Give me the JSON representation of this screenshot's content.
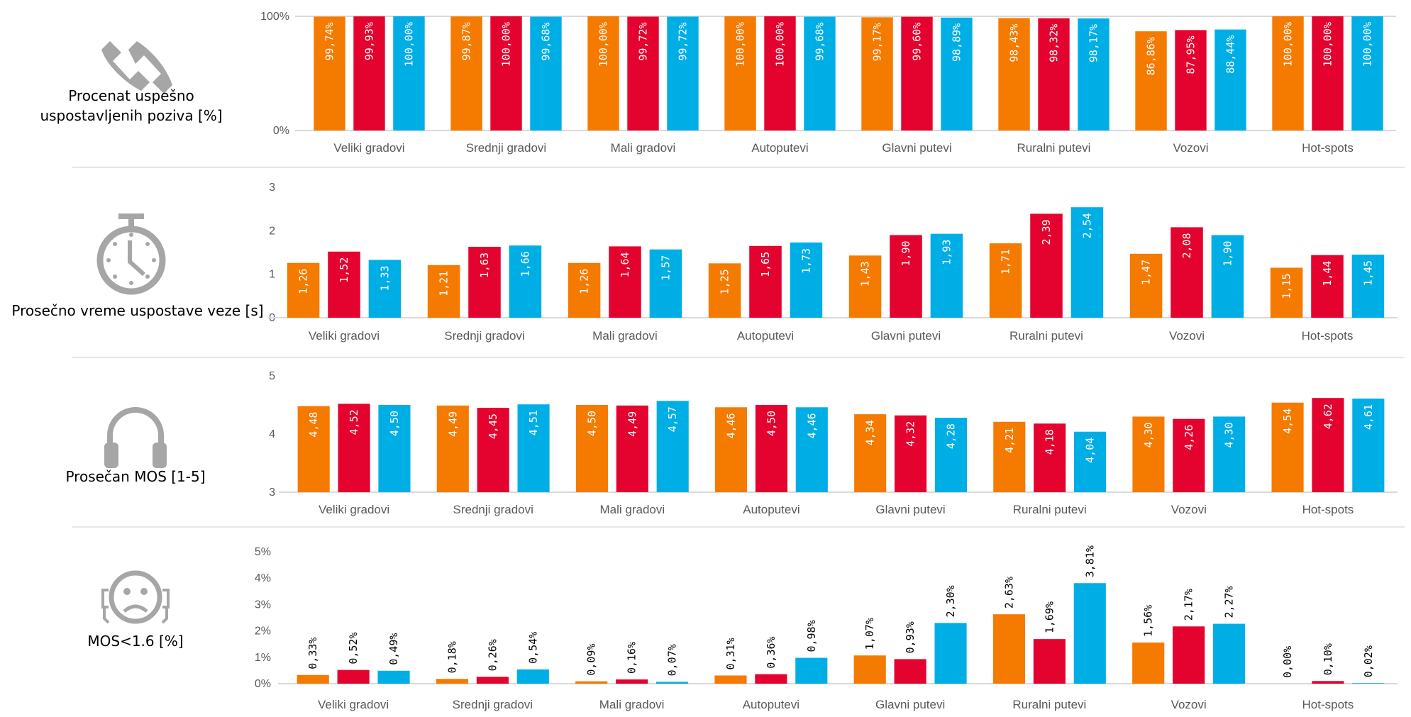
{
  "colors": {
    "series": [
      "#F57A00",
      "#E4032E",
      "#00AEE6"
    ],
    "axis": "#D9D9D9",
    "text": "#595959"
  },
  "panels": [
    {
      "title_lines": [
        "Procenat uspešno",
        "uspostavljenih poziva [%]"
      ],
      "icon": "phone-disconnected-icon"
    },
    {
      "title_lines": [
        "Prosečno vreme uspostave veze [s]"
      ],
      "icon": "stopwatch-icon"
    },
    {
      "title_lines": [
        "Prosečan MOS [1-5]"
      ],
      "icon": "headphones-icon"
    },
    {
      "title_lines": [
        "MOS<1.6 [%]"
      ],
      "icon": "sad-face-headset-icon"
    }
  ],
  "chart_data": [
    {
      "type": "bar",
      "categories": [
        "Veliki gradovi",
        "Srednji gradovi",
        "Mali gradovi",
        "Autoputevi",
        "Glavni putevi",
        "Ruralni putevi",
        "Vozovi",
        "Hot-spots"
      ],
      "series": [
        {
          "values": [
            99.74,
            99.87,
            100.0,
            100.0,
            99.17,
            98.43,
            86.86,
            100.0
          ]
        },
        {
          "values": [
            99.93,
            100.0,
            99.72,
            100.0,
            99.6,
            98.32,
            87.95,
            100.0
          ]
        },
        {
          "values": [
            100.0,
            99.68,
            99.72,
            99.68,
            98.89,
            98.17,
            88.44,
            100.0
          ]
        }
      ],
      "ylim": [
        0,
        100
      ],
      "yticks": [
        {
          "value": 0,
          "label": "0%"
        },
        {
          "value": 100,
          "label": "100%"
        }
      ],
      "value_suffix": "%",
      "data_label_position": "inside-end",
      "grid": false
    },
    {
      "type": "bar",
      "categories": [
        "Veliki gradovi",
        "Srednji gradovi",
        "Mali gradovi",
        "Autoputevi",
        "Glavni putevi",
        "Ruralni putevi",
        "Vozovi",
        "Hot-spots"
      ],
      "series": [
        {
          "values": [
            1.26,
            1.21,
            1.26,
            1.25,
            1.43,
            1.71,
            1.47,
            1.15
          ]
        },
        {
          "values": [
            1.52,
            1.63,
            1.64,
            1.65,
            1.9,
            2.39,
            2.08,
            1.44
          ]
        },
        {
          "values": [
            1.33,
            1.66,
            1.57,
            1.73,
            1.93,
            2.54,
            1.9,
            1.45
          ]
        }
      ],
      "ylim": [
        0,
        3
      ],
      "yticks": [
        {
          "value": 0,
          "label": "0"
        },
        {
          "value": 1,
          "label": "1"
        },
        {
          "value": 2,
          "label": "2"
        },
        {
          "value": 3,
          "label": "3"
        }
      ],
      "value_suffix": "",
      "data_label_position": "inside-end",
      "grid": false
    },
    {
      "type": "bar",
      "categories": [
        "Veliki gradovi",
        "Srednji gradovi",
        "Mali gradovi",
        "Autoputevi",
        "Glavni putevi",
        "Ruralni putevi",
        "Vozovi",
        "Hot-spots"
      ],
      "series": [
        {
          "values": [
            4.48,
            4.49,
            4.5,
            4.46,
            4.34,
            4.21,
            4.3,
            4.54
          ]
        },
        {
          "values": [
            4.52,
            4.45,
            4.49,
            4.5,
            4.32,
            4.18,
            4.26,
            4.62
          ]
        },
        {
          "values": [
            4.5,
            4.51,
            4.57,
            4.46,
            4.28,
            4.04,
            4.3,
            4.61
          ]
        }
      ],
      "ylim": [
        3,
        5
      ],
      "yticks": [
        {
          "value": 3,
          "label": "3"
        },
        {
          "value": 4,
          "label": "4"
        },
        {
          "value": 5,
          "label": "5"
        }
      ],
      "value_suffix": "",
      "data_label_position": "inside-end",
      "grid": false
    },
    {
      "type": "bar",
      "categories": [
        "Veliki gradovi",
        "Srednji gradovi",
        "Mali gradovi",
        "Autoputevi",
        "Glavni putevi",
        "Ruralni putevi",
        "Vozovi",
        "Hot-spots"
      ],
      "series": [
        {
          "values": [
            0.33,
            0.18,
            0.09,
            0.31,
            1.07,
            2.63,
            1.56,
            0.0
          ]
        },
        {
          "values": [
            0.52,
            0.26,
            0.16,
            0.36,
            0.93,
            1.69,
            2.17,
            0.1
          ]
        },
        {
          "values": [
            0.49,
            0.54,
            0.07,
            0.98,
            2.3,
            3.81,
            2.27,
            0.02
          ]
        }
      ],
      "ylim": [
        0,
        5
      ],
      "yticks": [
        {
          "value": 0,
          "label": "0%"
        },
        {
          "value": 1,
          "label": "1%"
        },
        {
          "value": 2,
          "label": "2%"
        },
        {
          "value": 3,
          "label": "3%"
        },
        {
          "value": 4,
          "label": "4%"
        },
        {
          "value": 5,
          "label": "5%"
        }
      ],
      "value_suffix": "%",
      "data_label_position": "outside-end",
      "grid": false
    }
  ]
}
